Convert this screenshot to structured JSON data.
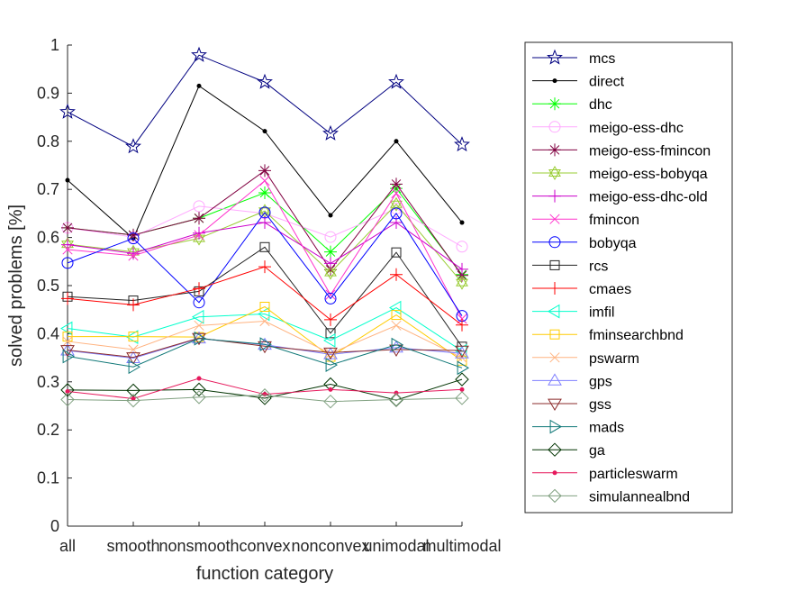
{
  "chart_data": {
    "type": "line",
    "categories": [
      "all",
      "smooth",
      "nonsmooth",
      "convex",
      "nonconvex",
      "unimodal",
      "multimodal"
    ],
    "xlabel": "function category",
    "ylabel": "solved problems [%]",
    "ylim": [
      0,
      1
    ],
    "yticks": [
      "0",
      "0.1",
      "0.2",
      "0.3",
      "0.4",
      "0.5",
      "0.6",
      "0.7",
      "0.8",
      "0.9",
      "1"
    ],
    "grid": false,
    "legend_position": "outside-right",
    "series": [
      {
        "name": "mcs",
        "color": "#000080",
        "marker": "star",
        "values": [
          0.861,
          0.789,
          0.979,
          0.923,
          0.816,
          0.923,
          0.793
        ]
      },
      {
        "name": "direct",
        "color": "#000000",
        "marker": "dot",
        "values": [
          0.719,
          0.598,
          0.915,
          0.821,
          0.646,
          0.8,
          0.631
        ]
      },
      {
        "name": "dhc",
        "color": "#00ff00",
        "marker": "asterisk",
        "values": [
          0.62,
          0.605,
          0.64,
          0.693,
          0.57,
          0.702,
          0.523
        ]
      },
      {
        "name": "meigo-ess-dhc",
        "color": "#ffaaff",
        "marker": "circle",
        "values": [
          0.62,
          0.601,
          0.665,
          0.65,
          0.601,
          0.66,
          0.581
        ]
      },
      {
        "name": "meigo-ess-fmincon",
        "color": "#800040",
        "marker": "asterisk",
        "values": [
          0.62,
          0.605,
          0.64,
          0.739,
          0.533,
          0.711,
          0.521
        ]
      },
      {
        "name": "meigo-ess-bobyqa",
        "color": "#99cc33",
        "marker": "hexagram",
        "values": [
          0.586,
          0.57,
          0.598,
          0.655,
          0.527,
          0.669,
          0.506
        ]
      },
      {
        "name": "meigo-ess-dhc-old",
        "color": "#cc00cc",
        "marker": "plus",
        "values": [
          0.585,
          0.567,
          0.609,
          0.631,
          0.546,
          0.631,
          0.534
        ]
      },
      {
        "name": "fmincon",
        "color": "#ff33cc",
        "marker": "x",
        "values": [
          0.575,
          0.562,
          0.605,
          0.718,
          0.481,
          0.692,
          0.431
        ]
      },
      {
        "name": "bobyqa",
        "color": "#0000ff",
        "marker": "circle",
        "values": [
          0.547,
          0.598,
          0.465,
          0.652,
          0.473,
          0.65,
          0.437
        ]
      },
      {
        "name": "rcs",
        "color": "#222222",
        "marker": "square",
        "values": [
          0.477,
          0.469,
          0.488,
          0.58,
          0.401,
          0.569,
          0.373
        ]
      },
      {
        "name": "cmaes",
        "color": "#ff0000",
        "marker": "plus",
        "values": [
          0.473,
          0.46,
          0.494,
          0.539,
          0.429,
          0.523,
          0.418
        ]
      },
      {
        "name": "imfil",
        "color": "#00ffcc",
        "marker": "triangle-left",
        "values": [
          0.411,
          0.393,
          0.435,
          0.441,
          0.386,
          0.454,
          0.364
        ]
      },
      {
        "name": "fminsearchbnd",
        "color": "#ffcc00",
        "marker": "square",
        "values": [
          0.394,
          0.394,
          0.393,
          0.456,
          0.352,
          0.439,
          0.344
        ]
      },
      {
        "name": "pswarm",
        "color": "#ffb380",
        "marker": "x",
        "values": [
          0.384,
          0.367,
          0.417,
          0.426,
          0.359,
          0.417,
          0.35
        ]
      },
      {
        "name": "gps",
        "color": "#8080ff",
        "marker": "triangle-up",
        "values": [
          0.365,
          0.349,
          0.39,
          0.377,
          0.357,
          0.371,
          0.359
        ]
      },
      {
        "name": "gss",
        "color": "#8b2b2b",
        "marker": "triangle-down",
        "values": [
          0.366,
          0.351,
          0.391,
          0.374,
          0.361,
          0.367,
          0.365
        ]
      },
      {
        "name": "mads",
        "color": "#107878",
        "marker": "triangle-right",
        "values": [
          0.353,
          0.331,
          0.39,
          0.378,
          0.335,
          0.377,
          0.329
        ]
      },
      {
        "name": "ga",
        "color": "#003300",
        "marker": "diamond",
        "values": [
          0.283,
          0.282,
          0.284,
          0.266,
          0.295,
          0.262,
          0.305
        ]
      },
      {
        "name": "particleswarm",
        "color": "#e6195c",
        "marker": "dot",
        "values": [
          0.28,
          0.265,
          0.307,
          0.274,
          0.284,
          0.277,
          0.284
        ]
      },
      {
        "name": "simulannealbnd",
        "color": "#80a080",
        "marker": "diamond",
        "values": [
          0.263,
          0.261,
          0.268,
          0.272,
          0.259,
          0.263,
          0.266
        ]
      }
    ]
  }
}
